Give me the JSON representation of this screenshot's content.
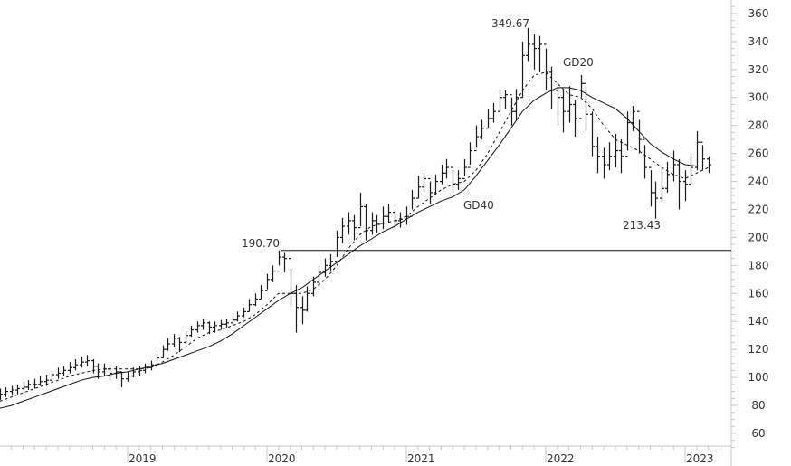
{
  "chart_data": {
    "type": "ohlc",
    "ylim": [
      50,
      370
    ],
    "xlim": [
      "2018-02-01",
      "2023-03-15"
    ],
    "y_ticks": [
      60,
      80,
      100,
      120,
      140,
      160,
      180,
      200,
      220,
      240,
      260,
      280,
      300,
      320,
      340,
      360
    ],
    "x_tick_labels": [
      "2019",
      "2020",
      "2021",
      "2022",
      "2023"
    ],
    "y_axis_position": "right",
    "grid": false,
    "bar_fields": [
      "date",
      "high",
      "low",
      "close"
    ],
    "bars": [
      [
        "2018-02-01",
        92,
        84,
        88
      ],
      [
        "2018-02-15",
        93,
        86,
        90
      ],
      [
        "2018-03-01",
        94,
        87,
        91
      ],
      [
        "2018-03-15",
        95,
        88,
        92
      ],
      [
        "2018-04-01",
        97,
        89,
        93
      ],
      [
        "2018-04-15",
        98,
        91,
        95
      ],
      [
        "2018-05-01",
        99,
        92,
        95
      ],
      [
        "2018-05-15",
        101,
        94,
        97
      ],
      [
        "2018-06-01",
        102,
        94,
        98
      ],
      [
        "2018-06-15",
        105,
        97,
        102
      ],
      [
        "2018-07-01",
        107,
        99,
        103
      ],
      [
        "2018-07-15",
        108,
        101,
        105
      ],
      [
        "2018-08-01",
        111,
        103,
        107
      ],
      [
        "2018-08-15",
        113,
        105,
        109
      ],
      [
        "2018-09-01",
        115,
        107,
        111
      ],
      [
        "2018-09-15",
        116,
        108,
        112
      ],
      [
        "2018-10-01",
        113,
        103,
        108
      ],
      [
        "2018-10-15",
        110,
        99,
        104
      ],
      [
        "2018-11-01",
        110,
        101,
        106
      ],
      [
        "2018-11-15",
        108,
        98,
        103
      ],
      [
        "2018-12-01",
        108,
        99,
        104
      ],
      [
        "2018-12-15",
        104,
        93,
        99
      ],
      [
        "2019-01-01",
        104,
        97,
        101
      ],
      [
        "2019-01-15",
        107,
        100,
        104
      ],
      [
        "2019-02-01",
        108,
        101,
        105
      ],
      [
        "2019-02-15",
        110,
        103,
        107
      ],
      [
        "2019-03-01",
        112,
        105,
        109
      ],
      [
        "2019-03-15",
        117,
        109,
        114
      ],
      [
        "2019-04-01",
        123,
        114,
        120
      ],
      [
        "2019-04-15",
        128,
        119,
        124
      ],
      [
        "2019-05-01",
        131,
        122,
        128
      ],
      [
        "2019-05-15",
        129,
        118,
        125
      ],
      [
        "2019-06-01",
        133,
        124,
        130
      ],
      [
        "2019-06-15",
        137,
        129,
        134
      ],
      [
        "2019-07-01",
        140,
        132,
        137
      ],
      [
        "2019-07-15",
        142,
        134,
        139
      ],
      [
        "2019-08-01",
        140,
        131,
        136
      ],
      [
        "2019-08-15",
        140,
        132,
        137
      ],
      [
        "2019-09-01",
        141,
        134,
        138
      ],
      [
        "2019-09-15",
        142,
        135,
        139
      ],
      [
        "2019-10-01",
        144,
        137,
        141
      ],
      [
        "2019-10-15",
        147,
        140,
        144
      ],
      [
        "2019-11-01",
        150,
        143,
        147
      ],
      [
        "2019-11-15",
        156,
        147,
        152
      ],
      [
        "2019-12-01",
        160,
        151,
        156
      ],
      [
        "2019-12-15",
        166,
        156,
        162
      ],
      [
        "2020-01-01",
        174,
        163,
        170
      ],
      [
        "2020-01-15",
        180,
        168,
        176
      ],
      [
        "2020-02-01",
        190.7,
        180,
        186
      ],
      [
        "2020-02-15",
        189,
        175,
        185
      ],
      [
        "2020-03-01",
        178,
        150,
        160
      ],
      [
        "2020-03-15",
        166,
        132,
        150
      ],
      [
        "2020-04-01",
        158,
        138,
        148
      ],
      [
        "2020-04-15",
        165,
        147,
        160
      ],
      [
        "2020-05-01",
        172,
        158,
        168
      ],
      [
        "2020-05-15",
        180,
        164,
        175
      ],
      [
        "2020-06-01",
        185,
        172,
        180
      ],
      [
        "2020-06-15",
        188,
        176,
        183
      ],
      [
        "2020-07-01",
        205,
        186,
        200
      ],
      [
        "2020-07-15",
        214,
        196,
        208
      ],
      [
        "2020-08-01",
        218,
        202,
        212
      ],
      [
        "2020-08-15",
        216,
        198,
        207
      ],
      [
        "2020-09-01",
        232,
        208,
        222
      ],
      [
        "2020-09-15",
        224,
        198,
        205
      ],
      [
        "2020-10-01",
        218,
        202,
        212
      ],
      [
        "2020-10-15",
        216,
        203,
        210
      ],
      [
        "2020-11-01",
        222,
        206,
        215
      ],
      [
        "2020-11-15",
        224,
        210,
        218
      ],
      [
        "2020-12-01",
        220,
        206,
        212
      ],
      [
        "2020-12-15",
        218,
        207,
        213
      ],
      [
        "2021-01-01",
        222,
        209,
        215
      ],
      [
        "2021-01-15",
        234,
        220,
        228
      ],
      [
        "2021-02-01",
        244,
        228,
        236
      ],
      [
        "2021-02-15",
        246,
        232,
        242
      ],
      [
        "2021-03-01",
        240,
        224,
        232
      ],
      [
        "2021-03-15",
        245,
        230,
        240
      ],
      [
        "2021-04-01",
        252,
        238,
        246
      ],
      [
        "2021-04-15",
        256,
        242,
        250
      ],
      [
        "2021-05-01",
        248,
        232,
        238
      ],
      [
        "2021-05-15",
        248,
        234,
        242
      ],
      [
        "2021-06-01",
        256,
        244,
        250
      ],
      [
        "2021-06-15",
        268,
        252,
        262
      ],
      [
        "2021-07-01",
        280,
        264,
        272
      ],
      [
        "2021-07-15",
        284,
        270,
        278
      ],
      [
        "2021-08-01",
        292,
        278,
        285
      ],
      [
        "2021-08-15",
        296,
        282,
        290
      ],
      [
        "2021-09-01",
        306,
        290,
        300
      ],
      [
        "2021-09-15",
        305,
        292,
        302
      ],
      [
        "2021-10-01",
        300,
        280,
        290
      ],
      [
        "2021-10-15",
        306,
        284,
        300
      ],
      [
        "2021-11-01",
        340,
        300,
        330
      ],
      [
        "2021-11-15",
        349.67,
        326,
        338
      ],
      [
        "2021-12-01",
        345,
        320,
        335
      ],
      [
        "2021-12-15",
        344,
        318,
        338
      ],
      [
        "2022-01-01",
        335,
        305,
        318
      ],
      [
        "2022-01-15",
        322,
        292,
        305
      ],
      [
        "2022-02-01",
        312,
        280,
        300
      ],
      [
        "2022-02-15",
        305,
        275,
        290
      ],
      [
        "2022-03-01",
        308,
        282,
        295
      ],
      [
        "2022-03-15",
        298,
        272,
        285
      ],
      [
        "2022-04-01",
        316,
        300,
        310
      ],
      [
        "2022-04-15",
        308,
        276,
        288
      ],
      [
        "2022-05-01",
        290,
        258,
        265
      ],
      [
        "2022-05-15",
        272,
        246,
        258
      ],
      [
        "2022-06-01",
        264,
        242,
        252
      ],
      [
        "2022-06-15",
        268,
        248,
        258
      ],
      [
        "2022-07-01",
        274,
        250,
        262
      ],
      [
        "2022-07-15",
        270,
        246,
        258
      ],
      [
        "2022-08-01",
        290,
        262,
        282
      ],
      [
        "2022-08-15",
        294,
        276,
        290
      ],
      [
        "2022-09-01",
        284,
        260,
        270
      ],
      [
        "2022-09-15",
        266,
        242,
        250
      ],
      [
        "2022-10-01",
        248,
        222,
        232
      ],
      [
        "2022-10-15",
        240,
        213.43,
        228
      ],
      [
        "2022-11-01",
        250,
        226,
        235
      ],
      [
        "2022-11-15",
        254,
        232,
        245
      ],
      [
        "2022-12-01",
        262,
        240,
        252
      ],
      [
        "2022-12-15",
        256,
        220,
        240
      ],
      [
        "2023-01-01",
        248,
        226,
        238
      ],
      [
        "2023-01-15",
        258,
        238,
        250
      ],
      [
        "2023-02-01",
        276,
        248,
        268
      ],
      [
        "2023-02-15",
        266,
        248,
        256
      ],
      [
        "2023-03-01",
        258,
        246,
        252
      ]
    ],
    "moving_averages": [
      {
        "name": "GD20",
        "style": "dashed",
        "dates_monthly_from": "2018-02",
        "values": [
          83,
          86,
          89,
          92,
          95,
          98,
          101,
          103,
          105,
          106,
          106,
          106,
          106,
          107,
          111,
          116,
          122,
          128,
          132,
          134,
          137,
          140,
          145,
          152,
          160,
          160,
          160,
          163,
          170,
          180,
          192,
          202,
          208,
          210,
          212,
          215,
          222,
          228,
          234,
          238,
          240,
          248,
          260,
          275,
          290,
          305,
          316,
          318,
          310,
          302,
          300,
          292,
          280,
          270,
          266,
          262,
          256,
          250,
          245,
          242,
          246,
          250
        ]
      },
      {
        "name": "GD40",
        "style": "solid",
        "dates_monthly_from": "2018-02",
        "values": [
          78,
          80,
          83,
          86,
          89,
          92,
          95,
          98,
          100,
          101,
          103,
          104,
          106,
          108,
          110,
          113,
          116,
          119,
          122,
          126,
          131,
          137,
          143,
          149,
          155,
          160,
          164,
          170,
          176,
          182,
          188,
          194,
          199,
          204,
          208,
          213,
          218,
          222,
          226,
          229,
          234,
          244,
          255,
          266,
          278,
          290,
          298,
          303,
          307,
          307,
          305,
          300,
          296,
          292,
          285,
          276,
          267,
          261,
          256,
          252,
          251,
          251
        ]
      }
    ],
    "horizontal_line": {
      "value": 190.7,
      "label": "190.70"
    },
    "annotations": [
      {
        "text": "349.67",
        "value": 349.67
      },
      {
        "text": "213.43",
        "value": 213.43
      },
      {
        "text": "GD20"
      },
      {
        "text": "GD40"
      }
    ],
    "colors": {
      "bars": "#1a1a1a",
      "axis": "#c8c8c8",
      "labels": "#333333"
    }
  }
}
